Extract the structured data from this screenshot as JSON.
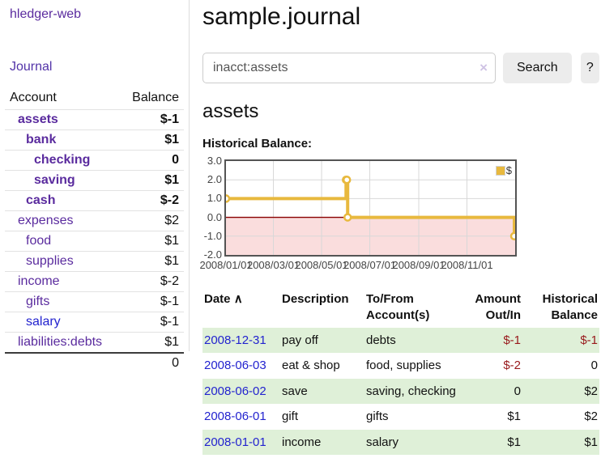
{
  "brand": "hledger-web",
  "nav": {
    "journal_label": "Journal"
  },
  "sidebar": {
    "col_account": "Account",
    "col_balance": "Balance",
    "accounts": [
      {
        "name": "assets",
        "depth": 0,
        "bold": true,
        "balance": "$-1",
        "neg": "strong",
        "blue": false
      },
      {
        "name": "bank",
        "depth": 1,
        "bold": true,
        "balance": "$1",
        "neg": "none",
        "blue": false
      },
      {
        "name": "checking",
        "depth": 2,
        "bold": true,
        "balance": "0",
        "neg": "none",
        "blue": false
      },
      {
        "name": "saving",
        "depth": 2,
        "bold": true,
        "balance": "$1",
        "neg": "none",
        "blue": false
      },
      {
        "name": "cash",
        "depth": 1,
        "bold": true,
        "balance": "$-2",
        "neg": "strong",
        "blue": false
      },
      {
        "name": "expenses",
        "depth": 0,
        "bold": false,
        "balance": "$2",
        "neg": "none",
        "blue": false
      },
      {
        "name": "food",
        "depth": 1,
        "bold": false,
        "balance": "$1",
        "neg": "none",
        "blue": false
      },
      {
        "name": "supplies",
        "depth": 1,
        "bold": false,
        "balance": "$1",
        "neg": "none",
        "blue": false
      },
      {
        "name": "income",
        "depth": 0,
        "bold": false,
        "balance": "$-2",
        "neg": "soft",
        "blue": false
      },
      {
        "name": "gifts",
        "depth": 1,
        "bold": false,
        "balance": "$-1",
        "neg": "soft",
        "blue": false
      },
      {
        "name": "salary",
        "depth": 1,
        "bold": false,
        "balance": "$-1",
        "neg": "soft",
        "blue": true
      },
      {
        "name": "liabilities:debts",
        "depth": 0,
        "bold": false,
        "balance": "$1",
        "neg": "none",
        "blue": false
      }
    ],
    "total": "0"
  },
  "header": {
    "title": "sample.journal"
  },
  "search": {
    "value": "inacct:assets",
    "clear_label": "×",
    "button_label": "Search",
    "help_label": "?"
  },
  "account_page": {
    "heading": "assets"
  },
  "chart_data": {
    "type": "line",
    "title": "Historical Balance:",
    "series": [
      {
        "name": "$",
        "color": "#e8b93e",
        "step": true,
        "points": [
          {
            "date": "2008-01-01",
            "value": 1
          },
          {
            "date": "2008-06-01",
            "value": 2
          },
          {
            "date": "2008-06-02",
            "value": 2
          },
          {
            "date": "2008-06-03",
            "value": 0
          },
          {
            "date": "2008-12-31",
            "value": -1
          }
        ]
      }
    ],
    "x_range": [
      "2008-01-01",
      "2009-01-01"
    ],
    "ylim": [
      -2,
      3
    ],
    "y_ticks": [
      3.0,
      2.0,
      1.0,
      0.0,
      -1.0,
      -2.0
    ],
    "x_ticks": [
      {
        "label": "2008/01/01",
        "date": "2008-01-01"
      },
      {
        "label": "2008/03/01",
        "date": "2008-03-01"
      },
      {
        "label": "2008/05/01",
        "date": "2008-05-01"
      },
      {
        "label": "2008/07/01",
        "date": "2008-07-01"
      },
      {
        "label": "2008/09/01",
        "date": "2008-09-01"
      },
      {
        "label": "2008/11/01",
        "date": "2008-11-01"
      }
    ],
    "grid": true,
    "legend_position": "top-right",
    "legend_label": "$",
    "negative_region_fill": "#fadddd",
    "zero_line_color": "#8b0000",
    "grid_color": "#d8d8d8",
    "border_color": "#545454"
  },
  "register": {
    "columns": {
      "date_label": "Date",
      "sort_indicator": "∧",
      "description_label": "Description",
      "tofrom_line1": "To/From",
      "tofrom_line2": "Account(s)",
      "amount_line1": "Amount",
      "amount_line2": "Out/In",
      "historical_line1": "Historical",
      "historical_line2": "Balance"
    },
    "rows": [
      {
        "date": "2008-12-31",
        "description": "pay off",
        "accounts": "debts",
        "amount": "$-1",
        "amount_neg": true,
        "balance": "$-1",
        "balance_neg": true,
        "shade": true
      },
      {
        "date": "2008-06-03",
        "description": "eat & shop",
        "accounts": "food, supplies",
        "amount": "$-2",
        "amount_neg": true,
        "balance": "0",
        "balance_neg": false,
        "shade": false
      },
      {
        "date": "2008-06-02",
        "description": "save",
        "accounts": "saving, checking",
        "amount": "0",
        "amount_neg": false,
        "balance": "$2",
        "balance_neg": false,
        "shade": true
      },
      {
        "date": "2008-06-01",
        "description": "gift",
        "accounts": "gifts",
        "amount": "$1",
        "amount_neg": false,
        "balance": "$2",
        "balance_neg": false,
        "shade": false
      },
      {
        "date": "2008-01-01",
        "description": "income",
        "accounts": "salary",
        "amount": "$1",
        "amount_neg": false,
        "balance": "$1",
        "balance_neg": false,
        "shade": true
      }
    ]
  }
}
